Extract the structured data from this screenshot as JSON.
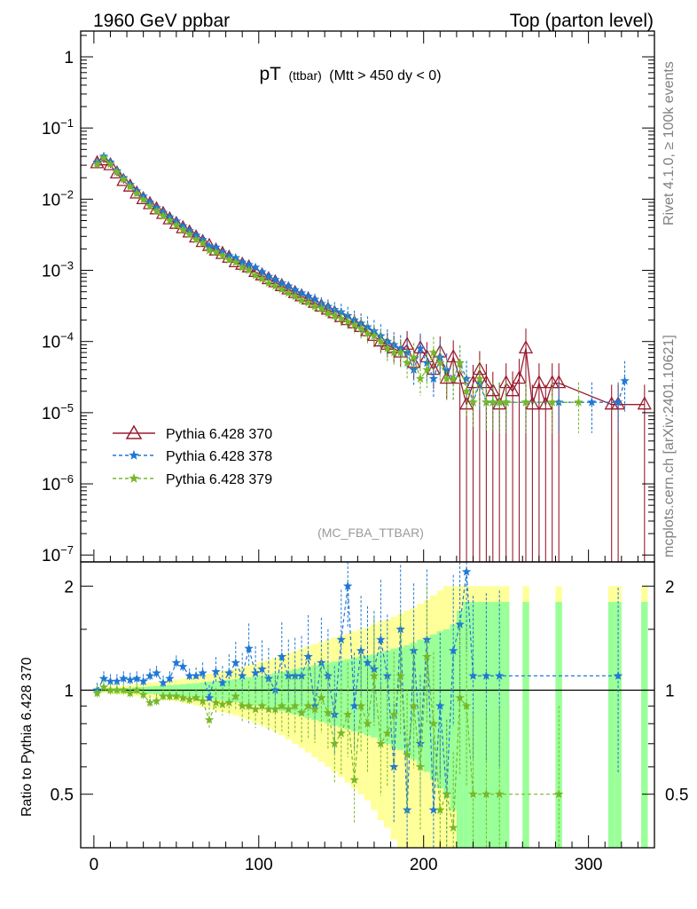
{
  "header": {
    "left": "1960 GeV ppbar",
    "right": "Top (parton level)"
  },
  "side_texts": {
    "rivet": "Rivet 4.1.0, ≥ 100k events",
    "mcplots": "mcplots.cern.ch [arXiv:2401.10621]"
  },
  "watermark": "(MC_FBA_TTBAR)",
  "colors": {
    "s370": "#9a1b2e",
    "s378": "#1f78d4",
    "s379": "#76b82a",
    "band_outer": "#ffff99",
    "band_inner": "#99ff99"
  },
  "chart_data": [
    {
      "type": "line",
      "title": {
        "main": "pT",
        "sub": "(ttbar)",
        "cond": "(Mtt > 450 dy < 0)"
      },
      "xlabel": "",
      "ylabel": "",
      "xlim": [
        -8,
        340
      ],
      "ylim": [
        8e-08,
        2.3
      ],
      "yscale": "log",
      "yticks": [
        {
          "label": "1",
          "exp": "",
          "value": 1
        },
        {
          "label": "10",
          "exp": "−1",
          "value": 0.1
        },
        {
          "label": "10",
          "exp": "−2",
          "value": 0.01
        },
        {
          "label": "10",
          "exp": "−3",
          "value": 0.001
        },
        {
          "label": "10",
          "exp": "−4",
          "value": 0.0001
        },
        {
          "label": "10",
          "exp": "−5",
          "value": 1e-05
        },
        {
          "label": "10",
          "exp": "−6",
          "value": 1e-06
        },
        {
          "label": "10",
          "exp": "−7",
          "value": 1e-07
        }
      ],
      "legend": [
        {
          "label": "Pythia 6.428 370",
          "series": "s370"
        },
        {
          "label": "Pythia 6.428 378",
          "series": "s378"
        },
        {
          "label": "Pythia 6.428 379",
          "series": "s379"
        }
      ],
      "series": [
        {
          "name": "Pythia 6.428 370",
          "key": "s370",
          "marker": "triangle",
          "line": "solid",
          "x": [
            2,
            6,
            10,
            14,
            18,
            22,
            26,
            30,
            34,
            38,
            42,
            46,
            50,
            54,
            58,
            62,
            66,
            70,
            74,
            78,
            82,
            86,
            90,
            94,
            98,
            102,
            106,
            110,
            114,
            118,
            122,
            126,
            130,
            134,
            138,
            142,
            146,
            150,
            154,
            158,
            162,
            166,
            170,
            174,
            178,
            182,
            186,
            190,
            194,
            198,
            202,
            206,
            210,
            214,
            218,
            222,
            226,
            230,
            234,
            238,
            242,
            246,
            250,
            254,
            258,
            262,
            266,
            270,
            274,
            278,
            282,
            314,
            318,
            334
          ],
          "y": [
            0.032,
            0.035,
            0.03,
            0.023,
            0.018,
            0.015,
            0.012,
            0.01,
            0.0085,
            0.0072,
            0.0062,
            0.0052,
            0.0045,
            0.0039,
            0.0034,
            0.0029,
            0.0025,
            0.0022,
            0.0019,
            0.0017,
            0.0015,
            0.0013,
            0.0012,
            0.0011,
            0.00095,
            0.00085,
            0.00075,
            0.00068,
            0.0006,
            0.00054,
            0.00048,
            0.00043,
            0.00039,
            0.00035,
            0.00031,
            0.00028,
            0.00025,
            0.00022,
            0.0002,
            0.00018,
            0.00016,
            0.00014,
            0.00012,
            0.0001,
            9e-05,
            8e-05,
            7e-05,
            9e-05,
            5e-05,
            8e-05,
            6e-05,
            4e-05,
            7e-05,
            3e-05,
            6e-05,
            3e-05,
            1.3e-05,
            2.6e-05,
            4e-05,
            2.6e-05,
            2e-05,
            1.3e-05,
            2.6e-05,
            2e-05,
            3e-05,
            8e-05,
            1.3e-05,
            2.6e-05,
            1.3e-05,
            2.6e-05,
            2.6e-05,
            1.3e-05,
            1.3e-05,
            1.3e-05
          ]
        },
        {
          "name": "Pythia 6.428 378",
          "key": "s378",
          "marker": "star",
          "line": "dashed",
          "x": [
            2,
            6,
            10,
            14,
            18,
            22,
            26,
            30,
            34,
            38,
            42,
            46,
            50,
            54,
            58,
            62,
            66,
            70,
            74,
            78,
            82,
            86,
            90,
            94,
            98,
            102,
            106,
            110,
            114,
            118,
            122,
            126,
            130,
            134,
            138,
            142,
            146,
            150,
            154,
            158,
            162,
            166,
            170,
            174,
            178,
            182,
            186,
            190,
            194,
            198,
            202,
            206,
            210,
            214,
            218,
            222,
            226,
            230,
            234,
            238,
            242,
            246,
            250,
            262,
            282,
            302,
            318,
            322
          ],
          "y": [
            0.033,
            0.04,
            0.033,
            0.025,
            0.02,
            0.016,
            0.013,
            0.011,
            0.009,
            0.0076,
            0.0065,
            0.0056,
            0.0049,
            0.0042,
            0.0036,
            0.0031,
            0.0027,
            0.0022,
            0.0021,
            0.0018,
            0.0016,
            0.0015,
            0.0013,
            0.0012,
            0.0011,
            0.00095,
            0.00082,
            0.00074,
            0.00066,
            0.0006,
            0.00053,
            0.00048,
            0.00043,
            0.00039,
            0.00034,
            0.00031,
            0.00028,
            0.00026,
            0.00023,
            0.0002,
            0.00018,
            0.00016,
            0.00014,
            0.00012,
            0.0001,
            9e-05,
            8e-05,
            7e-05,
            4e-05,
            8e-05,
            5e-05,
            3e-05,
            6e-05,
            4e-05,
            3e-05,
            5e-05,
            3e-05,
            1.4e-05,
            2.6e-05,
            1.4e-05,
            1.4e-05,
            1.4e-05,
            1.4e-05,
            1.4e-05,
            1.4e-05,
            1.4e-05,
            1.4e-05,
            2.8e-05
          ]
        },
        {
          "name": "Pythia 6.428 379",
          "key": "s379",
          "marker": "star",
          "line": "dashed",
          "x": [
            2,
            6,
            10,
            14,
            18,
            22,
            26,
            30,
            34,
            38,
            42,
            46,
            50,
            54,
            58,
            62,
            66,
            70,
            74,
            78,
            82,
            86,
            90,
            94,
            98,
            102,
            106,
            110,
            114,
            118,
            122,
            126,
            130,
            134,
            138,
            142,
            146,
            150,
            154,
            158,
            162,
            166,
            170,
            174,
            178,
            182,
            186,
            190,
            194,
            198,
            202,
            206,
            210,
            214,
            218,
            222,
            226,
            230,
            234,
            238,
            242,
            246,
            250,
            262,
            278,
            294
          ],
          "y": [
            0.031,
            0.038,
            0.031,
            0.024,
            0.019,
            0.015,
            0.012,
            0.0098,
            0.008,
            0.0068,
            0.0058,
            0.005,
            0.0043,
            0.0037,
            0.0032,
            0.0027,
            0.0024,
            0.0019,
            0.0018,
            0.0016,
            0.0014,
            0.0013,
            0.0011,
            0.001,
            0.00085,
            0.00076,
            0.00066,
            0.0006,
            0.00054,
            0.00048,
            0.00043,
            0.00038,
            0.00035,
            0.00031,
            0.00029,
            0.00025,
            0.00023,
            0.00021,
            0.00019,
            0.00017,
            0.00015,
            0.00013,
            0.00012,
            0.0001,
            8e-05,
            7e-05,
            7e-05,
            5e-05,
            6e-05,
            3e-05,
            4e-05,
            7e-05,
            5e-05,
            3e-05,
            3e-05,
            5e-05,
            2e-05,
            1.4e-05,
            3e-05,
            1.4e-05,
            1.4e-05,
            1.4e-05,
            1.4e-05,
            1.4e-05,
            1.4e-05,
            1.4e-05
          ]
        }
      ]
    },
    {
      "type": "line",
      "ylabel": "Ratio to Pythia 6.428 370",
      "xlim": [
        -8,
        340
      ],
      "ylim": [
        0.35,
        2.35
      ],
      "yscale": "log",
      "yticks": [
        {
          "label": "0.5",
          "value": 0.5
        },
        {
          "label": "1",
          "value": 1
        },
        {
          "label": "2",
          "value": 2
        }
      ],
      "xticks": [
        {
          "label": "0",
          "value": 0
        },
        {
          "label": "100",
          "value": 100
        },
        {
          "label": "200",
          "value": 200
        },
        {
          "label": "300",
          "value": 300
        }
      ],
      "reference": 1,
      "band": {
        "x": [
          2,
          6,
          10,
          14,
          18,
          22,
          26,
          30,
          34,
          38,
          42,
          46,
          50,
          54,
          58,
          62,
          66,
          70,
          74,
          78,
          82,
          86,
          90,
          94,
          98,
          102,
          106,
          110,
          114,
          118,
          122,
          126,
          130,
          134,
          138,
          142,
          146,
          150,
          154,
          158,
          162,
          166,
          170,
          174,
          178,
          182,
          186,
          190,
          194,
          198,
          202,
          206,
          210,
          214,
          218,
          222,
          226,
          230,
          234,
          238,
          242,
          246,
          250,
          262,
          282,
          314,
          318,
          334
        ],
        "inner": [
          0.01,
          0.01,
          0.012,
          0.013,
          0.015,
          0.017,
          0.02,
          0.022,
          0.025,
          0.028,
          0.03,
          0.033,
          0.036,
          0.04,
          0.044,
          0.048,
          0.052,
          0.057,
          0.062,
          0.067,
          0.072,
          0.078,
          0.084,
          0.09,
          0.097,
          0.104,
          0.112,
          0.12,
          0.13,
          0.14,
          0.15,
          0.16,
          0.17,
          0.18,
          0.19,
          0.2,
          0.21,
          0.22,
          0.23,
          0.24,
          0.25,
          0.26,
          0.27,
          0.29,
          0.3,
          0.32,
          0.33,
          0.35,
          0.37,
          0.4,
          0.42,
          0.45,
          0.48,
          0.5,
          0.55,
          0.7,
          0.8,
          0.8,
          0.8,
          0.8,
          0.8,
          0.8,
          0.8,
          0.8,
          0.8,
          0.8,
          0.8,
          0.8
        ],
        "outer": [
          0.02,
          0.02,
          0.024,
          0.027,
          0.03,
          0.034,
          0.04,
          0.045,
          0.05,
          0.055,
          0.06,
          0.066,
          0.072,
          0.08,
          0.088,
          0.096,
          0.105,
          0.115,
          0.125,
          0.135,
          0.145,
          0.156,
          0.168,
          0.18,
          0.195,
          0.21,
          0.225,
          0.24,
          0.26,
          0.28,
          0.3,
          0.32,
          0.34,
          0.36,
          0.38,
          0.4,
          0.42,
          0.44,
          0.46,
          0.48,
          0.5,
          0.52,
          0.55,
          0.58,
          0.6,
          0.63,
          0.66,
          0.7,
          0.73,
          0.78,
          0.82,
          0.88,
          0.94,
          1,
          1,
          1,
          1,
          1,
          1,
          1,
          1,
          1,
          1,
          1,
          1,
          1,
          1,
          1
        ]
      },
      "series": [
        {
          "name": "Pythia 6.428 378",
          "key": "s378",
          "x": [
            2,
            6,
            10,
            14,
            18,
            22,
            26,
            30,
            34,
            38,
            42,
            46,
            50,
            54,
            58,
            62,
            66,
            70,
            74,
            78,
            82,
            86,
            90,
            94,
            98,
            102,
            106,
            110,
            114,
            118,
            122,
            126,
            130,
            134,
            138,
            142,
            146,
            150,
            154,
            158,
            162,
            166,
            170,
            174,
            178,
            182,
            186,
            190,
            194,
            198,
            202,
            206,
            210,
            214,
            218,
            222,
            226,
            230,
            238,
            246,
            318
          ],
          "y": [
            1.0,
            1.08,
            1.06,
            1.06,
            1.08,
            1.07,
            1.08,
            1.06,
            1.1,
            1.12,
            1.05,
            1.08,
            1.2,
            1.17,
            1.1,
            1.1,
            1.12,
            0.95,
            1.13,
            1.05,
            1.12,
            1.2,
            1.1,
            1.32,
            1.12,
            1.15,
            1.08,
            1.0,
            1.25,
            1.1,
            1.1,
            1.1,
            1.25,
            0.9,
            1.2,
            1.1,
            0.85,
            1.4,
            2.0,
            0.9,
            1.3,
            1.2,
            1.15,
            1.4,
            1.1,
            0.6,
            1.5,
            0.45,
            1.3,
            0.7,
            1.4,
            0.45,
            0.9,
            0.5,
            1.3,
            1.55,
            2.2,
            1.1,
            1.1,
            1.1,
            1.1
          ]
        },
        {
          "name": "Pythia 6.428 379",
          "key": "s379",
          "x": [
            2,
            6,
            10,
            14,
            18,
            22,
            26,
            30,
            34,
            38,
            42,
            46,
            50,
            54,
            58,
            62,
            66,
            70,
            74,
            78,
            82,
            86,
            90,
            94,
            98,
            102,
            106,
            110,
            114,
            118,
            122,
            126,
            130,
            134,
            138,
            142,
            146,
            150,
            154,
            158,
            162,
            166,
            170,
            174,
            178,
            182,
            186,
            190,
            194,
            198,
            202,
            206,
            210,
            214,
            218,
            222,
            226,
            230,
            238,
            246,
            282
          ],
          "y": [
            0.98,
            1.02,
            1.0,
            1.0,
            1.0,
            0.98,
            1.0,
            0.97,
            0.92,
            0.93,
            0.96,
            0.96,
            0.96,
            0.95,
            0.94,
            0.95,
            0.93,
            0.82,
            0.92,
            0.91,
            0.92,
            0.96,
            0.9,
            0.9,
            0.88,
            0.9,
            0.88,
            0.88,
            0.9,
            0.88,
            0.9,
            0.86,
            0.9,
            0.88,
            0.95,
            0.86,
            0.7,
            0.75,
            0.85,
            0.55,
            0.9,
            0.8,
            1.1,
            0.7,
            0.75,
            0.85,
            1.1,
            0.65,
            0.9,
            0.6,
            1.25,
            0.8,
            0.45,
            0.5,
            0.4,
            0.95,
            0.9,
            0.5,
            0.5,
            0.5,
            0.5
          ]
        },
        {
          "name": "Pythia 6.428 370",
          "key": "s370",
          "x": [
            2,
            318
          ],
          "y": [
            1.0,
            1.0
          ]
        }
      ]
    }
  ]
}
